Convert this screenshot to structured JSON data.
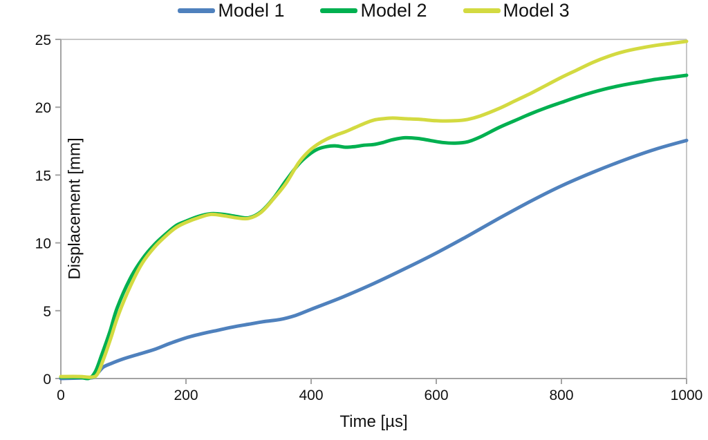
{
  "figure": {
    "legend": [
      {
        "label": "Model 1",
        "color": "#4f81bd"
      },
      {
        "label": "Model 2",
        "color": "#00b050"
      },
      {
        "label": "Model 3",
        "color": "#d3da41"
      }
    ],
    "x_axis_title": "Time [µs]",
    "y_axis_title": "Displacement [mm]",
    "axis_color": "#a3a3a3",
    "border_color": "#c6c6c6"
  },
  "chart_data": {
    "type": "line",
    "title": "",
    "xlabel": "Time [µs]",
    "ylabel": "Displacement [mm]",
    "xlim": [
      0,
      1000
    ],
    "ylim": [
      0,
      25
    ],
    "x_ticks": [
      0,
      200,
      400,
      600,
      800,
      1000
    ],
    "y_ticks": [
      0,
      5,
      10,
      15,
      20,
      25
    ],
    "grid": false,
    "legend_position": "top",
    "series": [
      {
        "name": "Model 1",
        "color": "#4f81bd",
        "points": [
          [
            0,
            0
          ],
          [
            40,
            0.05
          ],
          [
            52,
            0.08
          ],
          [
            60,
            0.45
          ],
          [
            68,
            0.85
          ],
          [
            80,
            1.1
          ],
          [
            100,
            1.45
          ],
          [
            125,
            1.8
          ],
          [
            150,
            2.15
          ],
          [
            175,
            2.6
          ],
          [
            200,
            3.0
          ],
          [
            225,
            3.3
          ],
          [
            250,
            3.55
          ],
          [
            275,
            3.8
          ],
          [
            300,
            4.0
          ],
          [
            325,
            4.2
          ],
          [
            350,
            4.35
          ],
          [
            375,
            4.65
          ],
          [
            400,
            5.1
          ],
          [
            450,
            6.0
          ],
          [
            500,
            7.0
          ],
          [
            550,
            8.1
          ],
          [
            600,
            9.25
          ],
          [
            650,
            10.5
          ],
          [
            700,
            11.8
          ],
          [
            750,
            13.05
          ],
          [
            800,
            14.2
          ],
          [
            850,
            15.2
          ],
          [
            900,
            16.1
          ],
          [
            950,
            16.9
          ],
          [
            1000,
            17.55
          ]
        ]
      },
      {
        "name": "Model 2",
        "color": "#00b050",
        "points": [
          [
            0,
            0.1
          ],
          [
            30,
            0.08
          ],
          [
            45,
            0.02
          ],
          [
            55,
            0.5
          ],
          [
            65,
            1.7
          ],
          [
            78,
            3.4
          ],
          [
            90,
            5.2
          ],
          [
            110,
            7.3
          ],
          [
            130,
            8.8
          ],
          [
            150,
            9.9
          ],
          [
            170,
            10.75
          ],
          [
            185,
            11.3
          ],
          [
            200,
            11.6
          ],
          [
            220,
            11.95
          ],
          [
            240,
            12.15
          ],
          [
            260,
            12.1
          ],
          [
            280,
            11.95
          ],
          [
            300,
            11.85
          ],
          [
            320,
            12.3
          ],
          [
            340,
            13.3
          ],
          [
            360,
            14.6
          ],
          [
            380,
            15.8
          ],
          [
            395,
            16.45
          ],
          [
            410,
            16.9
          ],
          [
            425,
            17.1
          ],
          [
            440,
            17.15
          ],
          [
            455,
            17.05
          ],
          [
            470,
            17.1
          ],
          [
            485,
            17.2
          ],
          [
            500,
            17.25
          ],
          [
            515,
            17.4
          ],
          [
            530,
            17.6
          ],
          [
            550,
            17.75
          ],
          [
            570,
            17.7
          ],
          [
            590,
            17.55
          ],
          [
            610,
            17.4
          ],
          [
            630,
            17.35
          ],
          [
            650,
            17.45
          ],
          [
            670,
            17.8
          ],
          [
            700,
            18.5
          ],
          [
            725,
            19.0
          ],
          [
            750,
            19.5
          ],
          [
            775,
            19.95
          ],
          [
            800,
            20.35
          ],
          [
            825,
            20.75
          ],
          [
            850,
            21.1
          ],
          [
            875,
            21.4
          ],
          [
            900,
            21.65
          ],
          [
            925,
            21.85
          ],
          [
            950,
            22.05
          ],
          [
            975,
            22.2
          ],
          [
            1000,
            22.35
          ]
        ]
      },
      {
        "name": "Model 3",
        "color": "#d3da41",
        "points": [
          [
            0,
            0.15
          ],
          [
            30,
            0.15
          ],
          [
            48,
            0.1
          ],
          [
            58,
            0.3
          ],
          [
            68,
            1.4
          ],
          [
            80,
            3.0
          ],
          [
            92,
            4.7
          ],
          [
            112,
            6.9
          ],
          [
            130,
            8.5
          ],
          [
            150,
            9.7
          ],
          [
            170,
            10.6
          ],
          [
            185,
            11.15
          ],
          [
            200,
            11.5
          ],
          [
            220,
            11.85
          ],
          [
            240,
            12.1
          ],
          [
            260,
            12.0
          ],
          [
            280,
            11.85
          ],
          [
            300,
            11.8
          ],
          [
            320,
            12.25
          ],
          [
            340,
            13.25
          ],
          [
            360,
            14.4
          ],
          [
            380,
            15.9
          ],
          [
            395,
            16.7
          ],
          [
            410,
            17.25
          ],
          [
            425,
            17.65
          ],
          [
            440,
            17.95
          ],
          [
            455,
            18.2
          ],
          [
            470,
            18.5
          ],
          [
            485,
            18.8
          ],
          [
            500,
            19.05
          ],
          [
            515,
            19.15
          ],
          [
            530,
            19.2
          ],
          [
            550,
            19.15
          ],
          [
            575,
            19.1
          ],
          [
            600,
            19.0
          ],
          [
            630,
            19.0
          ],
          [
            650,
            19.1
          ],
          [
            670,
            19.35
          ],
          [
            700,
            19.9
          ],
          [
            725,
            20.45
          ],
          [
            750,
            21.0
          ],
          [
            775,
            21.6
          ],
          [
            800,
            22.2
          ],
          [
            825,
            22.75
          ],
          [
            850,
            23.3
          ],
          [
            875,
            23.75
          ],
          [
            900,
            24.1
          ],
          [
            925,
            24.35
          ],
          [
            950,
            24.55
          ],
          [
            975,
            24.7
          ],
          [
            1000,
            24.85
          ]
        ]
      }
    ]
  }
}
